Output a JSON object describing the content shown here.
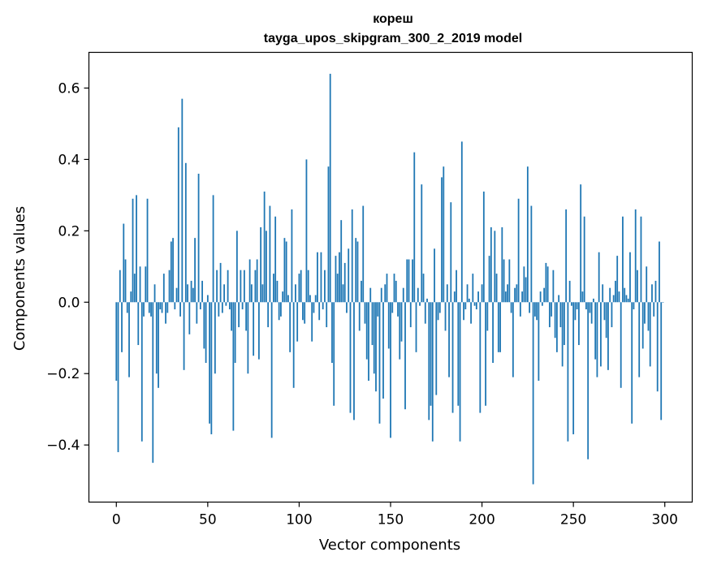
{
  "chart_data": {
    "type": "bar",
    "title": "кореш",
    "subtitle": "tayga_upos_skipgram_300_2_2019 model",
    "xlabel": "Vector components",
    "ylabel": "Components values",
    "xlim": [
      -15,
      315
    ],
    "ylim": [
      -0.56,
      0.7
    ],
    "xticks": [
      0,
      50,
      100,
      150,
      200,
      250,
      300
    ],
    "xtick_labels": [
      "0",
      "50",
      "100",
      "150",
      "200",
      "250",
      "300"
    ],
    "yticks": [
      -0.4,
      -0.2,
      0.0,
      0.2,
      0.4,
      0.6
    ],
    "ytick_labels": [
      "−0.4",
      "−0.2",
      "0.0",
      "0.2",
      "0.4",
      "0.6"
    ],
    "grid": false,
    "bar_color": "#1f77b4",
    "values": [
      -0.22,
      -0.42,
      0.09,
      -0.14,
      0.22,
      0.12,
      -0.03,
      -0.21,
      0.03,
      0.29,
      0.08,
      0.3,
      -0.12,
      0.1,
      -0.39,
      -0.04,
      0.1,
      0.29,
      -0.03,
      -0.04,
      -0.45,
      0.05,
      -0.2,
      -0.24,
      -0.02,
      -0.03,
      0.08,
      -0.06,
      -0.03,
      0.09,
      0.17,
      0.18,
      -0.02,
      0.04,
      0.49,
      -0.04,
      0.57,
      -0.19,
      0.39,
      0.05,
      -0.09,
      0.06,
      0.04,
      0.18,
      -0.06,
      0.36,
      -0.02,
      0.06,
      -0.13,
      -0.17,
      0.02,
      -0.34,
      -0.37,
      0.3,
      -0.2,
      0.09,
      -0.04,
      0.11,
      -0.03,
      0.05,
      -0.01,
      0.09,
      -0.02,
      -0.08,
      -0.36,
      -0.17,
      0.2,
      -0.07,
      0.09,
      -0.02,
      0.09,
      -0.08,
      -0.2,
      0.12,
      0.05,
      -0.15,
      0.09,
      0.12,
      -0.16,
      0.21,
      0.05,
      0.31,
      0.2,
      -0.07,
      0.27,
      -0.38,
      0.08,
      0.24,
      0.06,
      -0.05,
      -0.04,
      0.03,
      0.18,
      0.17,
      0.02,
      -0.14,
      0.26,
      -0.24,
      0.05,
      -0.11,
      0.08,
      0.09,
      -0.05,
      -0.06,
      0.4,
      0.09,
      0.02,
      -0.11,
      -0.03,
      0.02,
      0.14,
      -0.05,
      0.14,
      -0.02,
      0.09,
      -0.07,
      0.38,
      0.64,
      -0.17,
      -0.29,
      0.13,
      0.08,
      0.14,
      0.23,
      0.05,
      0.11,
      -0.03,
      0.15,
      -0.31,
      0.26,
      -0.33,
      0.18,
      0.17,
      -0.08,
      0.06,
      0.27,
      -0.06,
      -0.16,
      -0.22,
      0.04,
      -0.12,
      -0.2,
      -0.25,
      -0.04,
      -0.34,
      0.04,
      -0.27,
      0.05,
      0.08,
      -0.13,
      -0.38,
      -0.03,
      0.08,
      0.06,
      -0.04,
      -0.16,
      -0.11,
      0.04,
      -0.3,
      0.12,
      0.12,
      -0.07,
      0.12,
      0.42,
      -0.14,
      0.04,
      -0.01,
      0.33,
      0.08,
      -0.06,
      0.01,
      -0.33,
      -0.29,
      -0.39,
      0.15,
      -0.26,
      -0.05,
      -0.03,
      0.35,
      0.38,
      -0.08,
      0.05,
      -0.21,
      0.28,
      -0.31,
      0.03,
      0.09,
      -0.29,
      -0.39,
      0.45,
      -0.05,
      -0.02,
      0.05,
      0.01,
      -0.06,
      0.08,
      -0.01,
      -0.02,
      0.03,
      -0.31,
      0.05,
      0.31,
      -0.29,
      -0.08,
      0.13,
      0.21,
      -0.17,
      0.2,
      0.08,
      -0.14,
      -0.14,
      0.21,
      0.12,
      0.03,
      0.05,
      0.12,
      -0.03,
      -0.21,
      0.04,
      0.05,
      0.29,
      -0.04,
      0.03,
      0.1,
      0.07,
      0.38,
      -0.03,
      0.27,
      -0.51,
      -0.04,
      -0.05,
      -0.22,
      0.03,
      -0.01,
      0.04,
      0.11,
      0.1,
      -0.07,
      -0.04,
      0.09,
      -0.1,
      -0.14,
      0.02,
      -0.07,
      -0.18,
      -0.12,
      0.26,
      -0.39,
      0.06,
      -0.01,
      -0.37,
      -0.05,
      -0.02,
      -0.12,
      0.33,
      0.03,
      0.24,
      -0.02,
      -0.44,
      -0.03,
      -0.06,
      0.01,
      -0.16,
      -0.21,
      0.14,
      -0.18,
      0.05,
      -0.05,
      -0.1,
      -0.19,
      0.04,
      -0.07,
      0.02,
      0.06,
      0.13,
      0.03,
      -0.24,
      0.24,
      0.04,
      0.02,
      0.01,
      0.14,
      -0.34,
      -0.02,
      0.26,
      0.09,
      -0.21,
      0.24,
      -0.13,
      -0.06,
      0.1,
      -0.08,
      -0.18,
      0.05,
      -0.04,
      0.06,
      -0.25,
      0.17,
      -0.33,
      0.0
    ]
  }
}
